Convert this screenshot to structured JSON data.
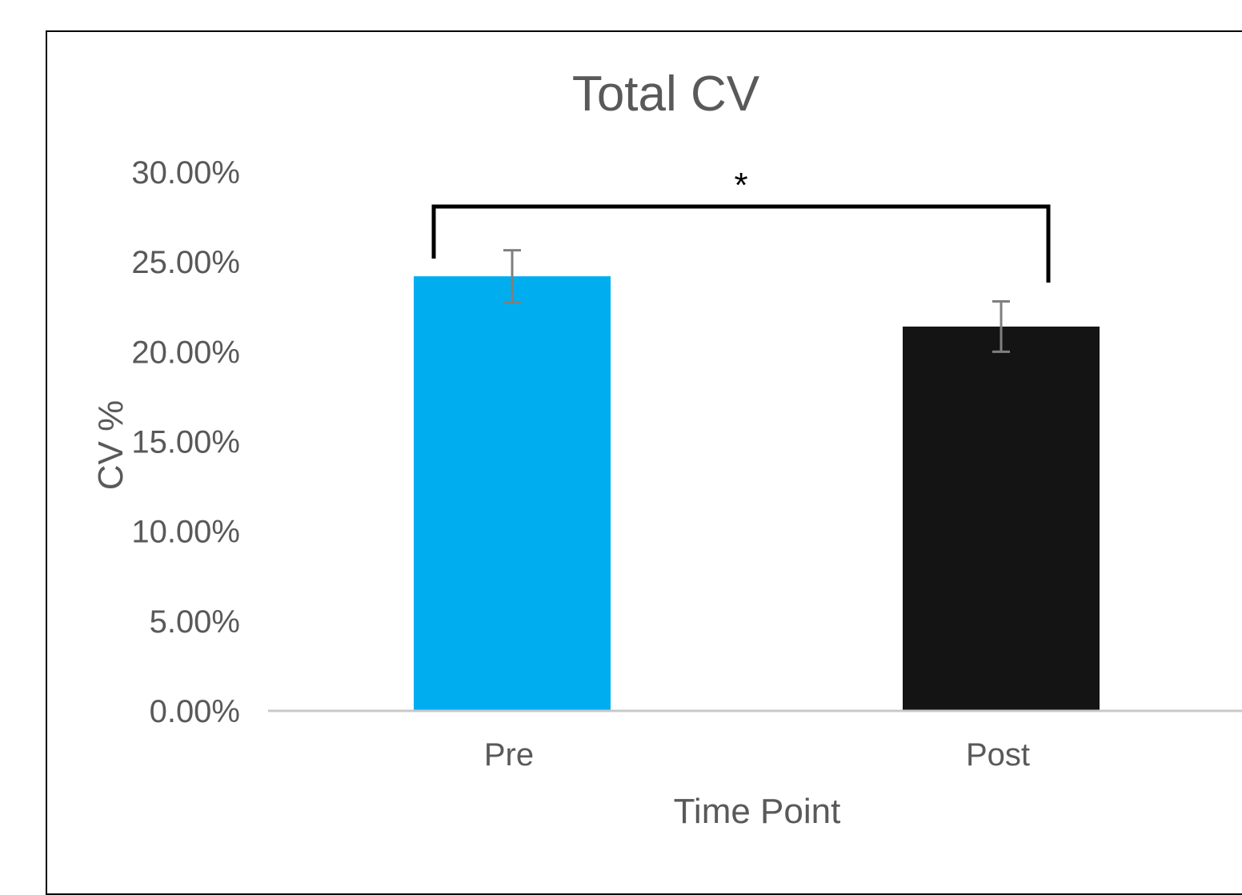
{
  "chart_data": {
    "type": "bar",
    "title": "Total CV",
    "xlabel": "Time Point",
    "ylabel": "CV %",
    "categories": [
      "Pre",
      "Post"
    ],
    "values": [
      24.2,
      21.4
    ],
    "errors": [
      1.45,
      1.4
    ],
    "colors": [
      "#00AEEF",
      "#141414"
    ],
    "ylim": [
      0,
      30
    ],
    "yticks": [
      0,
      5,
      10,
      15,
      20,
      25,
      30
    ],
    "ytick_labels": [
      "0.00%",
      "5.00%",
      "10.00%",
      "15.00%",
      "20.00%",
      "25.00%",
      "30.00%"
    ],
    "grid": false,
    "legend": "none",
    "significance": {
      "between": [
        "Pre",
        "Post"
      ],
      "marker": "*"
    }
  }
}
